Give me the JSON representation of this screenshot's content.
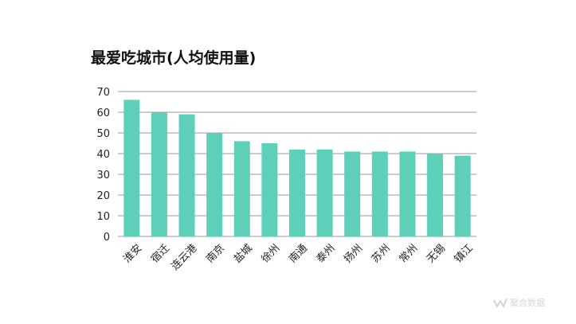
{
  "chart_data": {
    "type": "bar",
    "title": "最爱吃城市(人均使用量)",
    "xlabel": "",
    "ylabel": "",
    "categories": [
      "淮安",
      "宿迁",
      "连云港",
      "南京",
      "盐城",
      "徐州",
      "南通",
      "泰州",
      "扬州",
      "苏州",
      "常州",
      "无锡",
      "镇江"
    ],
    "values": [
      66,
      60,
      59,
      50,
      46,
      45,
      42,
      42,
      41,
      41,
      41,
      40,
      39
    ],
    "ylim": [
      0,
      70
    ],
    "yticks": [
      0,
      10,
      20,
      30,
      40,
      50,
      60,
      70
    ],
    "grid": true,
    "bar_color": "#5ecfb9"
  },
  "watermark": {
    "text": "聚合数据",
    "icon": "logo-icon"
  }
}
